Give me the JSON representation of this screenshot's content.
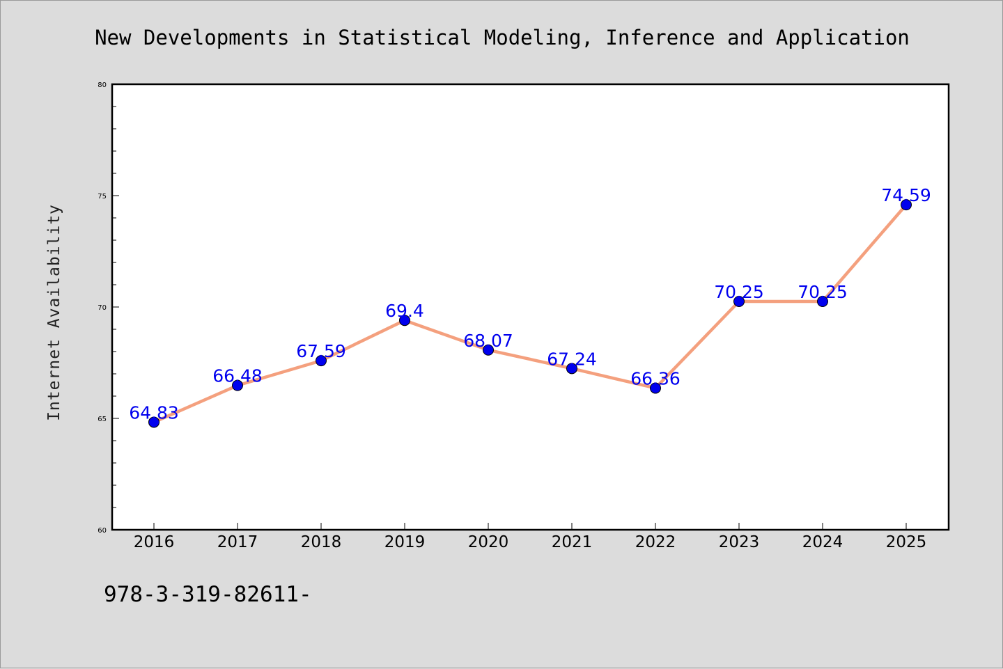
{
  "chart_data": {
    "type": "line",
    "title": "New Developments in Statistical Modeling, Inference and Application",
    "xlabel": "",
    "ylabel": "Internet Availability",
    "categories": [
      "2016",
      "2017",
      "2018",
      "2019",
      "2020",
      "2021",
      "2022",
      "2023",
      "2024",
      "2025"
    ],
    "series": [
      {
        "values": [
          64.83,
          66.48,
          67.59,
          69.4,
          68.07,
          67.24,
          66.36,
          70.25,
          70.25,
          74.59
        ],
        "labels": [
          "64.83",
          "66.48",
          "67.59",
          "69.4",
          "68.07",
          "67.24",
          "66.36",
          "70.25",
          "70.25",
          "74.59"
        ],
        "line_color": "#f4a07e",
        "marker_color": "#0000ee"
      }
    ],
    "ylim": [
      60,
      80
    ],
    "yticks": [
      60,
      65,
      70,
      75,
      80
    ],
    "ytick_labels": [
      "60",
      "65",
      "70",
      "75",
      "80"
    ],
    "grid": false,
    "legend": "none"
  },
  "footer": {
    "isbn_text": "978-3-319-82611-"
  }
}
